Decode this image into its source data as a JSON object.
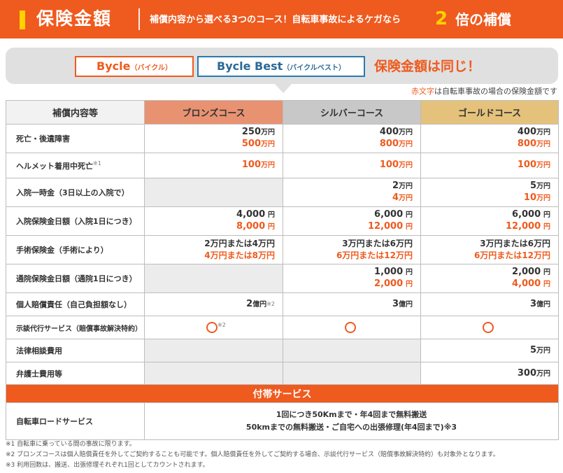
{
  "header": {
    "title": "保険金額",
    "subtitle": "補償内容から選べる3つのコース！自転車事故によるケガなら",
    "emphasis_number": "2",
    "emphasis_text": "倍の補償"
  },
  "banner": {
    "plan1_name": "Bycle",
    "plan1_kana": "（バイクル）",
    "plan2_name": "Bycle Best",
    "plan2_kana": "（バイクルベスト）",
    "same_text": "保険金額は同じ！"
  },
  "note_red_word": "赤文字",
  "note_rest": "は自転車事故の場合の保険金額です",
  "columns": {
    "label": "補償内容等",
    "bronze": "ブロンズコース",
    "silver": "シルバーコース",
    "gold": "ゴールドコース"
  },
  "rows": [
    {
      "label": "死亡・後遺障害",
      "bronze": {
        "main_num": "250",
        "main_unit": "万円",
        "red_num": "500",
        "red_unit": "万円"
      },
      "silver": {
        "main_num": "400",
        "main_unit": "万円",
        "red_num": "800",
        "red_unit": "万円"
      },
      "gold": {
        "main_num": "400",
        "main_unit": "万円",
        "red_num": "800",
        "red_unit": "万円"
      }
    },
    {
      "label": "ヘルメット着用中死亡",
      "label_note": "※1",
      "bronze": {
        "red_num": "100",
        "red_unit": "万円"
      },
      "silver": {
        "red_num": "100",
        "red_unit": "万円"
      },
      "gold": {
        "red_num": "100",
        "red_unit": "万円"
      }
    },
    {
      "label": "入院一時金（3日以上の入院で）",
      "silver": {
        "main_num": "2",
        "main_unit": "万円",
        "red_num": "4",
        "red_unit": "万円"
      },
      "gold": {
        "main_num": "5",
        "main_unit": "万円",
        "red_num": "10",
        "red_unit": "万円"
      }
    },
    {
      "label": "入院保険金日額（入院1日につき）",
      "bronze": {
        "main_num": "4,000",
        "main_unit": "円",
        "red_num": "8,000",
        "red_unit": "円"
      },
      "silver": {
        "main_num": "6,000",
        "main_unit": "円",
        "red_num": "12,000",
        "red_unit": "円"
      },
      "gold": {
        "main_num": "6,000",
        "main_unit": "円",
        "red_num": "12,000",
        "red_unit": "円"
      }
    },
    {
      "label": "手術保険金（手術により）",
      "bronze": {
        "main": "2万円または4万円",
        "red": "4万円または8万円"
      },
      "silver": {
        "main": "3万円または6万円",
        "red": "6万円または12万円"
      },
      "gold": {
        "main": "3万円または6万円",
        "red": "6万円または12万円"
      }
    },
    {
      "label": "通院保険金日額（通院1日につき）",
      "silver": {
        "main_num": "1,000",
        "main_unit": "円",
        "red_num": "2,000",
        "red_unit": "円"
      },
      "gold": {
        "main_num": "2,000",
        "main_unit": "円",
        "red_num": "4,000",
        "red_unit": "円"
      }
    },
    {
      "label": "個人賠償責任（自己負担額なし）",
      "bronze": {
        "main_num": "2",
        "main_unit": "億円",
        "note": "※2"
      },
      "silver": {
        "main_num": "3",
        "main_unit": "億円"
      },
      "gold": {
        "main_num": "3",
        "main_unit": "億円"
      }
    },
    {
      "label": "示談代行サービス（賠償事故解決特約）",
      "bronze_note": "※2"
    },
    {
      "label": "法律相談費用",
      "gold": {
        "main_num": "5",
        "main_unit": "万円"
      }
    },
    {
      "label": "弁護士費用等",
      "gold": {
        "main_num": "300",
        "main_unit": "万円"
      }
    }
  ],
  "extra": {
    "title": "付帯サービス",
    "road_label": "自転車ロードサービス",
    "road_line1": "1回につき50Kmまで・年4回まで無料搬送",
    "road_line2": "50kmまでの無料搬送・ご自宅への出張修理(年4回まで)※3"
  },
  "footnotes": [
    "※1 自転車に乗っている間の事故に限ります。",
    "※2 ブロンズコースは個人賠償責任を外してご契約することも可能です。個人賠償責任を外してご契約する場合、示談代行サービス（賠償事故解決特約）も対象外となります。",
    "※3 利用回数は、搬送、出張修理それぞれ1回としてカウントされます。"
  ],
  "colors": {
    "accent": "#ef5a1e",
    "yellow": "#ffd200",
    "bronze": "#e89272",
    "silver": "#c8c8c8",
    "gold": "#e5c27c",
    "plan2_blue": "#2a7ab0"
  }
}
